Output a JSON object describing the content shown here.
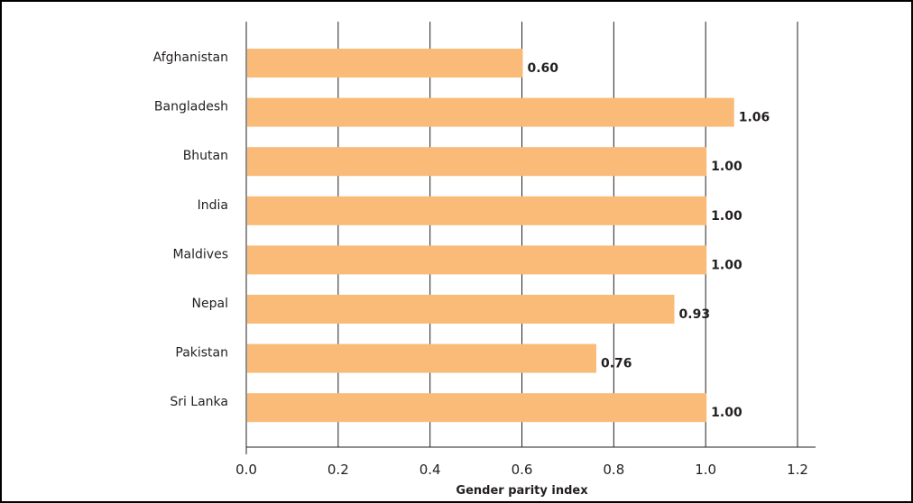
{
  "chart_data": {
    "type": "bar",
    "orientation": "horizontal",
    "categories": [
      "Afghanistan",
      "Bangladesh",
      "Bhutan",
      "India",
      "Maldives",
      "Nepal",
      "Pakistan",
      "Sri Lanka"
    ],
    "values": [
      0.6,
      1.06,
      1.0,
      1.0,
      1.0,
      0.93,
      0.76,
      1.0
    ],
    "value_labels": [
      "0.60",
      "1.06",
      "1.00",
      "1.00",
      "1.00",
      "0.93",
      "0.76",
      "1.00"
    ],
    "xlabel": "Gender parity index",
    "xlim": [
      0.0,
      1.2
    ],
    "xticks": [
      "0.0",
      "0.2",
      "0.4",
      "0.6",
      "0.8",
      "1.0",
      "1.2"
    ],
    "grid": "vertical",
    "bar_color": "#f9bb77",
    "grid_color": "#231f20"
  }
}
